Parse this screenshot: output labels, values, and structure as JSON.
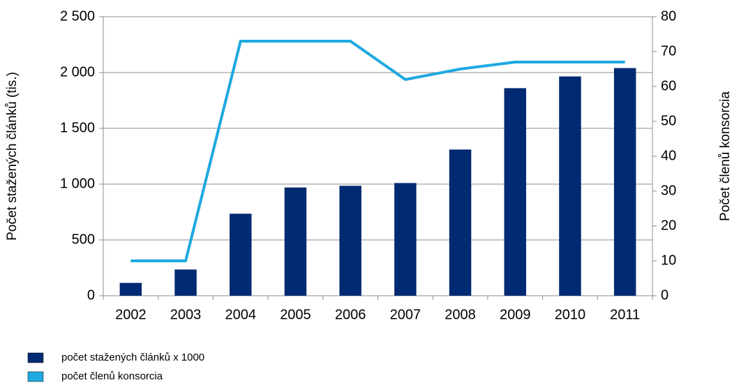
{
  "chart_data": {
    "type": "bar",
    "categories": [
      "2002",
      "2003",
      "2004",
      "2005",
      "2006",
      "2007",
      "2008",
      "2009",
      "2010",
      "2011"
    ],
    "series": [
      {
        "name": "počet stažených článků x 1000",
        "type": "bar",
        "color": "#002a72",
        "values": [
          115,
          235,
          735,
          970,
          985,
          1010,
          1310,
          1860,
          1965,
          2040
        ]
      },
      {
        "name": "počet členů konsorcia",
        "type": "line",
        "axis": "y2",
        "color": "#1ea9e1",
        "values": [
          10,
          10,
          73,
          73,
          73,
          62,
          65,
          67,
          67,
          67
        ]
      }
    ],
    "ylabel": "Počet stažených článků (tis.)",
    "y2label": "Počet členů konsorcia",
    "ylim": [
      0,
      2500
    ],
    "yticks": [
      0,
      500,
      {
        "value": 1000,
        "label": "1 000"
      },
      {
        "value": 1500,
        "label": "1 500"
      },
      {
        "value": 2000,
        "label": "2 000"
      },
      {
        "value": 2500,
        "label": "2 500"
      }
    ],
    "y2lim": [
      0,
      80
    ],
    "y2ticks": [
      0,
      10,
      20,
      30,
      40,
      50,
      60,
      70,
      80
    ],
    "grid": true,
    "legend": "bottom-left"
  }
}
